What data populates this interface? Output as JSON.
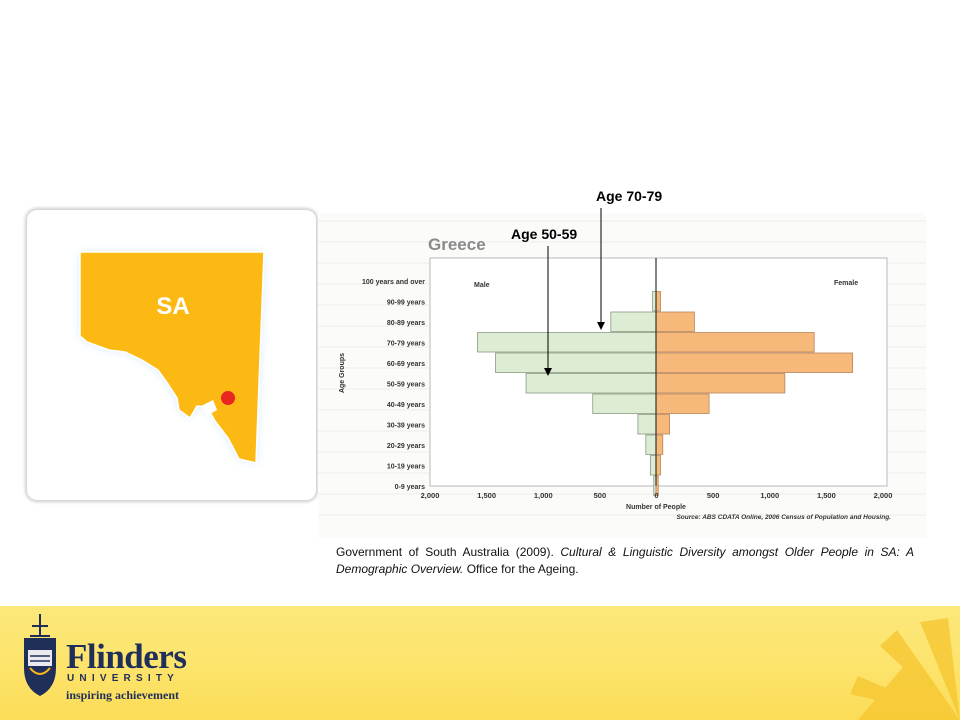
{
  "map": {
    "label": "SA"
  },
  "callouts": {
    "age_70_79": "Age 70-79",
    "age_50_59": "Age 50-59"
  },
  "citation": {
    "plain1": "Government of South Australia (2009). ",
    "italic": "Cultural & Linguistic Diversity amongst Older People in SA: A Demographic Overview.",
    "plain2": " Office for the Ageing."
  },
  "logo": {
    "wordmark": "Flinders",
    "subline": "UNIVERSITY",
    "tagline": "inspiring achievement"
  },
  "colors": {
    "male": "#dcedd3",
    "female": "#f7b97a",
    "map_fill": "#fdb913",
    "footer": "#fde46d"
  },
  "chart_data": {
    "type": "bar",
    "orientation": "horizontal",
    "title": "Greece",
    "xlabel": "Number of People",
    "ylabel": "Age Groups",
    "source": "Source: ABS CDATA Online, 2006 Census of Population and Housing.",
    "categories": [
      "100 years and over",
      "90-99 years",
      "80-89 years",
      "70-79 years",
      "60-69 years",
      "50-59 years",
      "40-49 years",
      "30-39 years",
      "20-29 years",
      "10-19 years",
      "0-9 years"
    ],
    "series": [
      {
        "name": "Male",
        "values": [
          0,
          30,
          400,
          1580,
          1420,
          1150,
          560,
          160,
          90,
          50,
          20
        ]
      },
      {
        "name": "Female",
        "values": [
          0,
          40,
          340,
          1400,
          1740,
          1140,
          470,
          120,
          60,
          40,
          20
        ]
      }
    ],
    "xticks": [
      "2,000",
      "1,500",
      "1,000",
      "500",
      "0",
      "500",
      "1,000",
      "1,500",
      "2,000"
    ],
    "xlim": [
      -2000,
      2000
    ]
  }
}
